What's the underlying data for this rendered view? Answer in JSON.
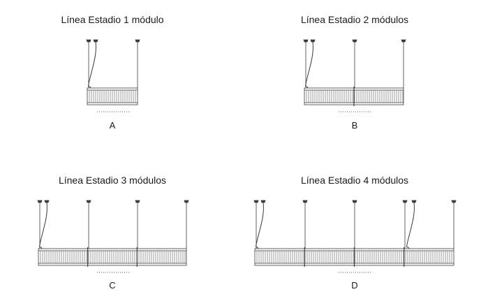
{
  "panels": [
    {
      "title": "Línea Estadio 1 módulo",
      "letter": "A",
      "modules": 1
    },
    {
      "title": "Línea Estadio 2 módulos",
      "letter": "B",
      "modules": 2
    },
    {
      "title": "Línea Estadio 3 módulos",
      "letter": "C",
      "modules": 3
    },
    {
      "title": "Línea Estadio 4 módulos",
      "letter": "D",
      "modules": 4
    }
  ],
  "colors": {
    "line": "#3a3a3a",
    "text": "#1a1a1a",
    "dots": "#555555"
  }
}
